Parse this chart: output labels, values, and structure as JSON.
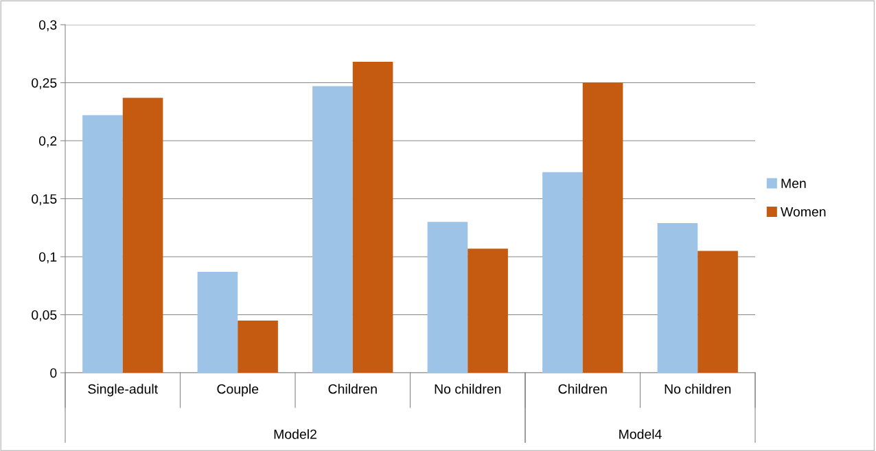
{
  "chart_data": {
    "type": "bar",
    "categories": [
      "Single-adult",
      "Couple",
      "Children",
      "No children",
      "Children",
      "No children"
    ],
    "series": [
      {
        "name": "Men",
        "color": "#9dc3e6",
        "values": [
          0.222,
          0.087,
          0.247,
          0.13,
          0.173,
          0.129
        ]
      },
      {
        "name": "Women",
        "color": "#c55a11",
        "values": [
          0.237,
          0.045,
          0.268,
          0.107,
          0.25,
          0.105
        ]
      }
    ],
    "ylim": [
      0,
      0.3
    ],
    "yticks": [
      {
        "value": 0,
        "label": "0"
      },
      {
        "value": 0.05,
        "label": "0,05"
      },
      {
        "value": 0.1,
        "label": "0,1"
      },
      {
        "value": 0.15,
        "label": "0,15"
      },
      {
        "value": 0.2,
        "label": "0,2"
      },
      {
        "value": 0.25,
        "label": "0,25"
      },
      {
        "value": 0.3,
        "label": "0,3"
      }
    ],
    "grid": "y",
    "legend": "right",
    "annotations": [
      "Model2",
      "Model4"
    ]
  }
}
